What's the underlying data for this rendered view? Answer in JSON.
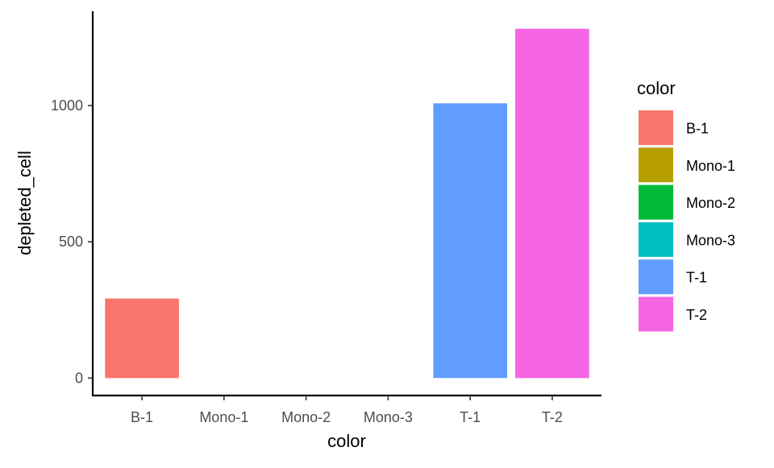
{
  "chart_data": {
    "type": "bar",
    "categories": [
      "B-1",
      "Mono-1",
      "Mono-2",
      "Mono-3",
      "T-1",
      "T-2"
    ],
    "values": [
      292,
      0,
      0,
      0,
      1008,
      1282
    ],
    "colors": [
      "#F8766D",
      "#B79F00",
      "#00BA38",
      "#00BFC4",
      "#619CFF",
      "#F564E3"
    ],
    "xlabel": "color",
    "ylabel": "depleted_cell",
    "ylim": [
      -64,
      1346
    ],
    "yticks": [
      0,
      500,
      1000
    ],
    "grid": false,
    "legend": {
      "title": "color",
      "position": "right",
      "entries": [
        "B-1",
        "Mono-1",
        "Mono-2",
        "Mono-3",
        "T-1",
        "T-2"
      ]
    }
  }
}
